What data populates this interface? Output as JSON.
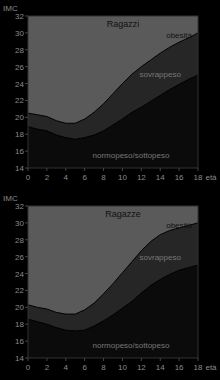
{
  "chart_data": [
    {
      "type": "area",
      "title": "Ragazzi",
      "x_label": "età",
      "y_label": "IMC",
      "x": [
        0,
        1,
        2,
        3,
        4,
        5,
        6,
        7,
        8,
        9,
        10,
        11,
        12,
        13,
        14,
        15,
        16,
        17,
        18
      ],
      "series": [
        {
          "name": "sovrappeso",
          "color": "#262626",
          "values": [
            18.9,
            18.6,
            18.4,
            17.9,
            17.6,
            17.4,
            17.6,
            17.9,
            18.4,
            19.1,
            19.8,
            20.6,
            21.2,
            21.9,
            22.6,
            23.3,
            23.9,
            24.5,
            25.0
          ]
        },
        {
          "name": "obesità",
          "color": "#5a5a5a",
          "values": [
            20.5,
            20.3,
            20.1,
            19.6,
            19.3,
            19.3,
            19.8,
            20.6,
            21.6,
            22.8,
            24.0,
            25.1,
            26.0,
            26.8,
            27.6,
            28.3,
            28.9,
            29.4,
            30.0
          ]
        }
      ],
      "annotations": [
        "normopeso/sottopeso"
      ],
      "xlim": [
        0,
        18
      ],
      "xticks": [
        0,
        2,
        4,
        6,
        8,
        10,
        12,
        14,
        16,
        18
      ],
      "ylim": [
        14,
        32
      ],
      "yticks": [
        14,
        16,
        18,
        20,
        22,
        24,
        26,
        28,
        30,
        32
      ]
    },
    {
      "type": "area",
      "title": "Ragazze",
      "x_label": "età",
      "y_label": "IMC",
      "x": [
        0,
        1,
        2,
        3,
        4,
        5,
        6,
        7,
        8,
        9,
        10,
        11,
        12,
        13,
        14,
        15,
        16,
        17,
        18
      ],
      "series": [
        {
          "name": "sovrappeso",
          "color": "#262626",
          "values": [
            18.6,
            18.3,
            18.0,
            17.6,
            17.3,
            17.2,
            17.3,
            17.8,
            18.4,
            19.1,
            19.9,
            20.7,
            21.7,
            22.6,
            23.3,
            23.9,
            24.4,
            24.7,
            25.0
          ]
        },
        {
          "name": "obesità",
          "color": "#5a5a5a",
          "values": [
            20.3,
            20.0,
            19.8,
            19.4,
            19.2,
            19.2,
            19.7,
            20.5,
            21.6,
            22.8,
            24.1,
            25.4,
            26.7,
            27.8,
            28.6,
            29.1,
            29.4,
            29.7,
            30.0
          ]
        }
      ],
      "annotations": [
        "normopeso/sottopeso"
      ],
      "xlim": [
        0,
        18
      ],
      "xticks": [
        0,
        2,
        4,
        6,
        8,
        10,
        12,
        14,
        16,
        18
      ],
      "ylim": [
        14,
        32
      ],
      "yticks": [
        14,
        16,
        18,
        20,
        22,
        24,
        26,
        28,
        30,
        32
      ]
    }
  ]
}
